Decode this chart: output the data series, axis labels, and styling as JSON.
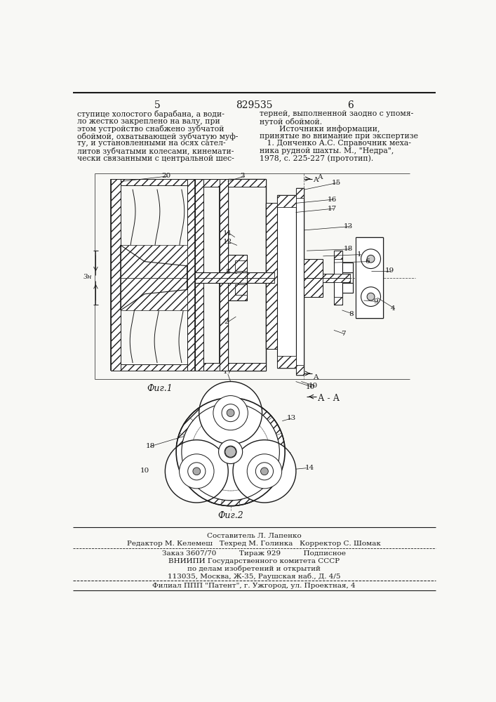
{
  "patent_number": "829535",
  "page_left": "5",
  "page_right": "6",
  "background_color": "#f8f8f5",
  "line_color": "#1a1a1a",
  "text_color": "#1a1a1a",
  "fig1_label": "Фиг.1",
  "fig2_label": "Фиг.2",
  "section_label": "А - А",
  "left_column_text": [
    "ступице холостого барабана, а води-",
    "ло жестко закреплено на валу, при",
    "этом устройство снабжено зубчатой",
    "обоймой, охватывающей зубчатую муф-",
    "ту, и установленными на осях сател-",
    "литов зубчатыми колесами, кинемати-",
    "чески связанными с центральной шес-"
  ],
  "right_column_text": [
    "терней, выполненной заодно с упомя-",
    "нутой обоймой.",
    "        Источники информации,",
    "принятые во внимание при экспертизе",
    "   1. Донченко А.С. Справочник меха-",
    "ника рудной шахты. М., \"Недра\",",
    "1978, с. 225-227 (прототип)."
  ],
  "footer_line1": "Составитель Л. Лапенко",
  "footer_line2": "Редактор М. Келемеш   Техред М. Голинка   Корректор С. Шомак",
  "footer_line3": "Заказ 3607/70          Тираж 929          Подписное",
  "footer_line4": "ВНИИПИ Государственного комитета СССР",
  "footer_line5": "по делам изобретений и открытий",
  "footer_line6": "113035, Москва, Ж-35, Раушская наб., Д. 4/5",
  "footer_line7": "Филиал ППП \"Патент\", г. Ужгород, ул. Проектная, 4"
}
